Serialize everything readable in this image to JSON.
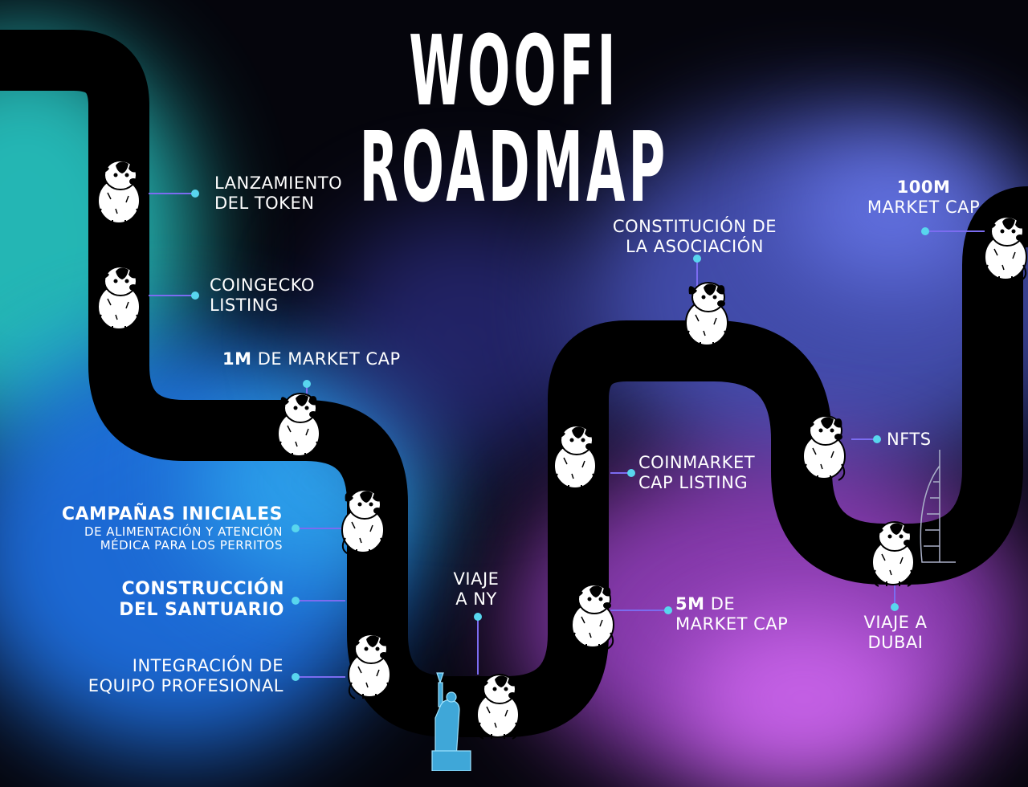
{
  "title": "WOOFI ROADMAP",
  "colors": {
    "road": "#000000",
    "connector": "#7b6cf0",
    "dot": "#58d6ee",
    "text": "#ffffff",
    "bg_teal": "#2ad6d2",
    "bg_blue": "#2a6cf0",
    "bg_purple": "#c85cf0",
    "bg_indigo": "#5a66e8"
  },
  "milestones": {
    "m1": {
      "line1": "LANZAMIENTO",
      "line2": "DEL TOKEN"
    },
    "m2": {
      "line1": "COINGECKO",
      "line2": "LISTING"
    },
    "m3": {
      "bold": "1M",
      "rest": " DE MARKET CAP"
    },
    "m4": {
      "title": "CAMPAÑAS INICIALES",
      "sub1": "DE ALIMENTACIÓN Y ATENCIÓN",
      "sub2": "MÉDICA PARA LOS PERRITOS"
    },
    "m5": {
      "line1": "CONSTRUCCIÓN",
      "line2": "DEL SANTUARIO"
    },
    "m6": {
      "line1": "INTEGRACIÓN DE",
      "line2": "EQUIPO PROFESIONAL"
    },
    "m7": {
      "line1": "VIAJE",
      "line2": "A NY"
    },
    "m8": {
      "line1": "COINMARKET",
      "line2": "CAP LISTING"
    },
    "m9": {
      "bold": "5M",
      "rest": " DE",
      "line2": "MARKET CAP"
    },
    "m10": {
      "line1": "CONSTITUCIÓN DE",
      "line2": "LA ASOCIACIÓN"
    },
    "m11": {
      "line1": "NFTS"
    },
    "m12": {
      "line1": "VIAJE A",
      "line2": "DUBAI"
    },
    "m13": {
      "bold": "100M",
      "line2": "MARKET CAP"
    }
  },
  "icons": [
    "dog-icon",
    "statue-of-liberty-icon",
    "burj-al-arab-icon"
  ]
}
